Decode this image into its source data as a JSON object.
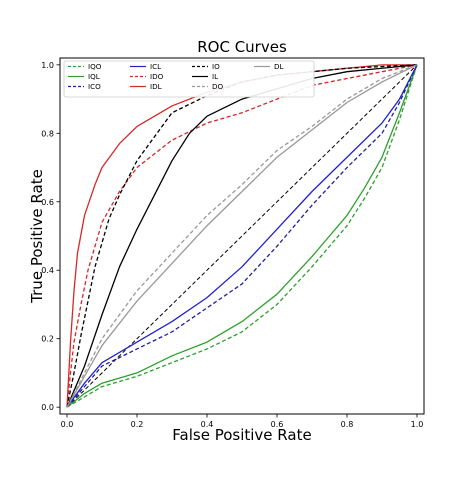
{
  "chart_data": {
    "type": "line",
    "title": "ROC Curves",
    "xlabel": "False Positive Rate",
    "ylabel": "True Positive Rate",
    "xlim": [
      -0.02,
      1.02
    ],
    "ylim": [
      -0.02,
      1.02
    ],
    "xticks": [
      "0.0",
      "0.2",
      "0.4",
      "0.6",
      "0.8",
      "1.0"
    ],
    "yticks": [
      "0.0",
      "0.2",
      "0.4",
      "0.6",
      "0.8",
      "1.0"
    ],
    "grid": false,
    "legend_position": "top-left",
    "legend_columns": 4,
    "diagonal": {
      "style": "dashed",
      "color": "#000000"
    },
    "series": [
      {
        "name": "IQO",
        "color": "#2ca02c",
        "dash": "dashed",
        "points": [
          [
            0,
            0
          ],
          [
            0.05,
            0.03
          ],
          [
            0.1,
            0.06
          ],
          [
            0.2,
            0.09
          ],
          [
            0.3,
            0.13
          ],
          [
            0.4,
            0.17
          ],
          [
            0.5,
            0.22
          ],
          [
            0.6,
            0.3
          ],
          [
            0.7,
            0.41
          ],
          [
            0.75,
            0.47
          ],
          [
            0.8,
            0.53
          ],
          [
            0.85,
            0.61
          ],
          [
            0.9,
            0.7
          ],
          [
            0.95,
            0.84
          ],
          [
            1,
            1
          ]
        ]
      },
      {
        "name": "IQL",
        "color": "#2ca02c",
        "dash": "solid",
        "points": [
          [
            0,
            0
          ],
          [
            0.05,
            0.04
          ],
          [
            0.1,
            0.07
          ],
          [
            0.2,
            0.1
          ],
          [
            0.3,
            0.15
          ],
          [
            0.4,
            0.19
          ],
          [
            0.5,
            0.25
          ],
          [
            0.6,
            0.33
          ],
          [
            0.7,
            0.44
          ],
          [
            0.75,
            0.5
          ],
          [
            0.8,
            0.56
          ],
          [
            0.85,
            0.64
          ],
          [
            0.9,
            0.73
          ],
          [
            0.95,
            0.86
          ],
          [
            1,
            1
          ]
        ]
      },
      {
        "name": "ICO",
        "color": "#1f1f9f",
        "dash": "dashed",
        "points": [
          [
            0,
            0
          ],
          [
            0.05,
            0.06
          ],
          [
            0.1,
            0.12
          ],
          [
            0.2,
            0.17
          ],
          [
            0.3,
            0.22
          ],
          [
            0.4,
            0.29
          ],
          [
            0.5,
            0.36
          ],
          [
            0.6,
            0.47
          ],
          [
            0.7,
            0.59
          ],
          [
            0.8,
            0.7
          ],
          [
            0.9,
            0.8
          ],
          [
            0.95,
            0.89
          ],
          [
            1,
            1
          ]
        ]
      },
      {
        "name": "ICL",
        "color": "#2222cc",
        "dash": "solid",
        "points": [
          [
            0,
            0
          ],
          [
            0.05,
            0.07
          ],
          [
            0.1,
            0.13
          ],
          [
            0.2,
            0.19
          ],
          [
            0.3,
            0.25
          ],
          [
            0.4,
            0.32
          ],
          [
            0.5,
            0.41
          ],
          [
            0.6,
            0.52
          ],
          [
            0.7,
            0.63
          ],
          [
            0.8,
            0.73
          ],
          [
            0.9,
            0.83
          ],
          [
            0.95,
            0.9
          ],
          [
            1,
            1
          ]
        ]
      },
      {
        "name": "IDO",
        "color": "#d62728",
        "dash": "dashed",
        "points": [
          [
            0,
            0
          ],
          [
            0.01,
            0.1
          ],
          [
            0.02,
            0.19
          ],
          [
            0.04,
            0.3
          ],
          [
            0.06,
            0.4
          ],
          [
            0.08,
            0.47
          ],
          [
            0.1,
            0.54
          ],
          [
            0.15,
            0.63
          ],
          [
            0.2,
            0.7
          ],
          [
            0.3,
            0.78
          ],
          [
            0.4,
            0.83
          ],
          [
            0.5,
            0.86
          ],
          [
            0.6,
            0.9
          ],
          [
            0.7,
            0.94
          ],
          [
            0.8,
            0.96
          ],
          [
            0.9,
            0.98
          ],
          [
            1,
            1
          ]
        ]
      },
      {
        "name": "IDL",
        "color": "#d62728",
        "dash": "solid",
        "points": [
          [
            0,
            0
          ],
          [
            0.01,
            0.19
          ],
          [
            0.02,
            0.34
          ],
          [
            0.03,
            0.45
          ],
          [
            0.05,
            0.56
          ],
          [
            0.08,
            0.65
          ],
          [
            0.1,
            0.7
          ],
          [
            0.15,
            0.77
          ],
          [
            0.2,
            0.82
          ],
          [
            0.3,
            0.88
          ],
          [
            0.4,
            0.92
          ],
          [
            0.5,
            0.95
          ],
          [
            0.6,
            0.97
          ],
          [
            0.7,
            0.98
          ],
          [
            0.8,
            0.99
          ],
          [
            0.9,
            1
          ],
          [
            1,
            1
          ]
        ]
      },
      {
        "name": "IO",
        "color": "#000000",
        "dash": "dashed",
        "points": [
          [
            0,
            0
          ],
          [
            0.02,
            0.1
          ],
          [
            0.04,
            0.21
          ],
          [
            0.06,
            0.31
          ],
          [
            0.08,
            0.41
          ],
          [
            0.1,
            0.48
          ],
          [
            0.12,
            0.55
          ],
          [
            0.15,
            0.62
          ],
          [
            0.2,
            0.72
          ],
          [
            0.25,
            0.79
          ],
          [
            0.3,
            0.86
          ],
          [
            0.4,
            0.91
          ],
          [
            0.5,
            0.95
          ],
          [
            0.6,
            0.97
          ],
          [
            0.7,
            0.98
          ],
          [
            0.8,
            0.99
          ],
          [
            1,
            1
          ]
        ]
      },
      {
        "name": "IL",
        "color": "#000000",
        "dash": "solid",
        "points": [
          [
            0,
            0
          ],
          [
            0.05,
            0.12
          ],
          [
            0.1,
            0.27
          ],
          [
            0.15,
            0.41
          ],
          [
            0.2,
            0.52
          ],
          [
            0.25,
            0.62
          ],
          [
            0.3,
            0.72
          ],
          [
            0.35,
            0.8
          ],
          [
            0.4,
            0.85
          ],
          [
            0.5,
            0.9
          ],
          [
            0.6,
            0.93
          ],
          [
            0.7,
            0.96
          ],
          [
            0.8,
            0.98
          ],
          [
            0.9,
            0.99
          ],
          [
            1,
            1
          ]
        ]
      },
      {
        "name": "DO",
        "color": "#999999",
        "dash": "dashed",
        "points": [
          [
            0,
            0
          ],
          [
            0.05,
            0.1
          ],
          [
            0.1,
            0.2
          ],
          [
            0.2,
            0.34
          ],
          [
            0.3,
            0.45
          ],
          [
            0.4,
            0.56
          ],
          [
            0.5,
            0.65
          ],
          [
            0.6,
            0.75
          ],
          [
            0.7,
            0.82
          ],
          [
            0.8,
            0.9
          ],
          [
            0.9,
            0.96
          ],
          [
            1,
            1
          ]
        ]
      },
      {
        "name": "DL",
        "color": "#999999",
        "dash": "solid",
        "points": [
          [
            0,
            0
          ],
          [
            0.05,
            0.09
          ],
          [
            0.1,
            0.18
          ],
          [
            0.2,
            0.31
          ],
          [
            0.3,
            0.42
          ],
          [
            0.4,
            0.53
          ],
          [
            0.5,
            0.63
          ],
          [
            0.6,
            0.73
          ],
          [
            0.7,
            0.81
          ],
          [
            0.8,
            0.89
          ],
          [
            0.9,
            0.95
          ],
          [
            1,
            1
          ]
        ]
      }
    ]
  }
}
